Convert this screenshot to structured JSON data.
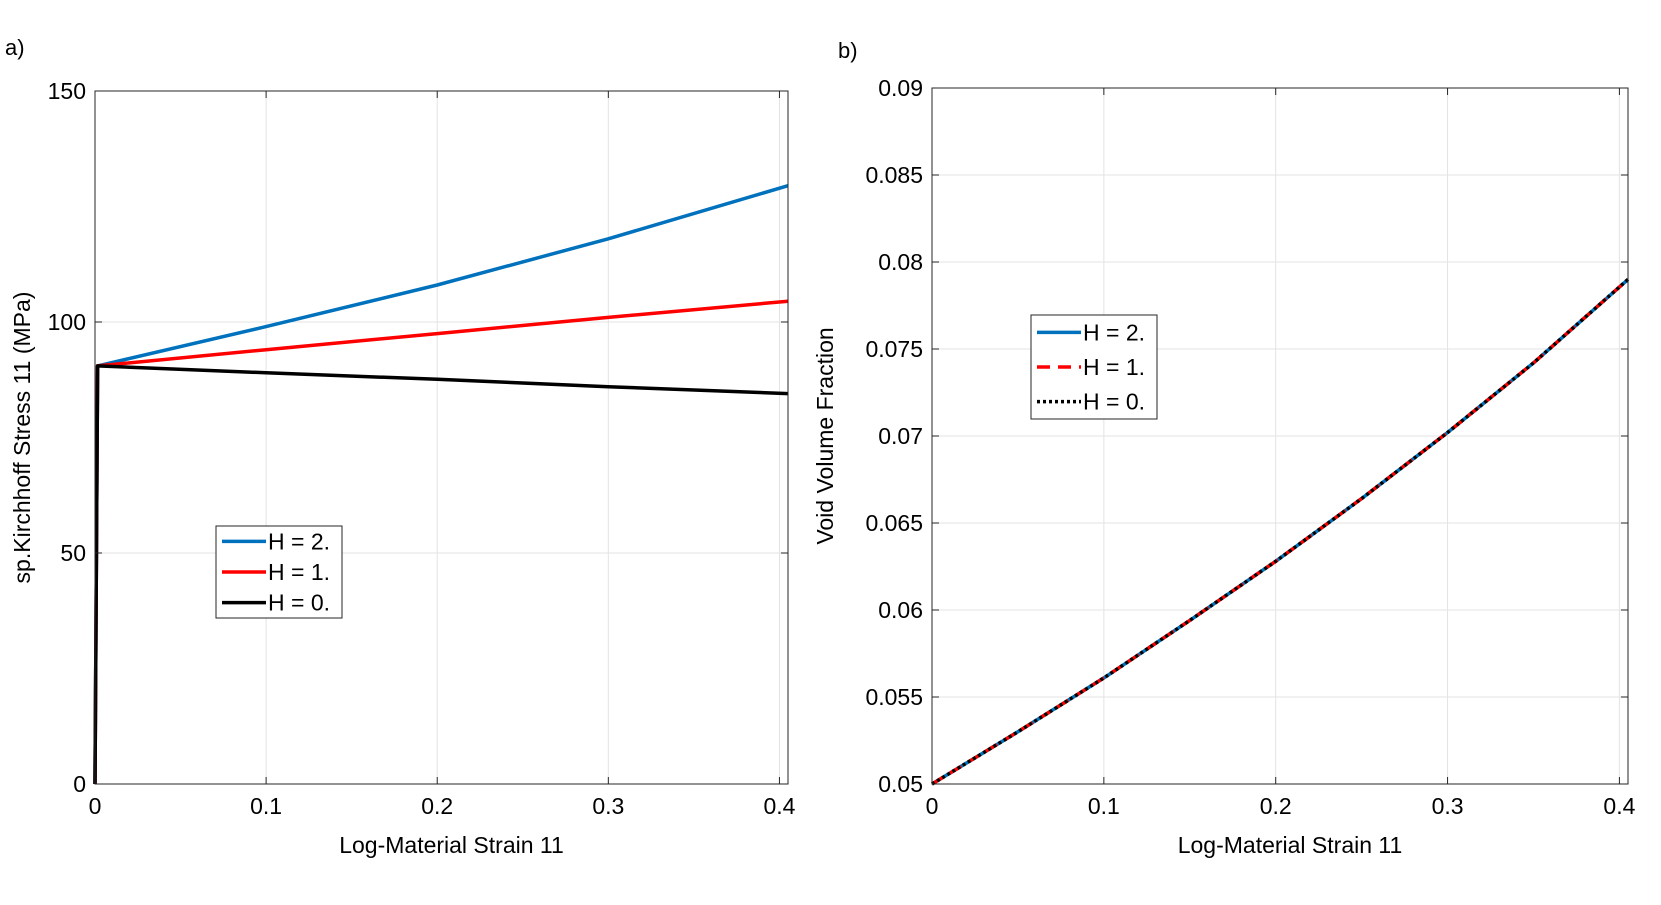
{
  "chart_data": [
    {
      "panel_label": "a)",
      "type": "line",
      "xlabel": "Log-Material        Strain 11",
      "ylabel": "sp.Kirchhoff        Stress 11  (MPa)",
      "xlim": [
        0,
        0.405
      ],
      "ylim": [
        0,
        150
      ],
      "xticks": [
        0,
        0.1,
        0.2,
        0.3,
        0.4
      ],
      "yticks": [
        0,
        50,
        100,
        150
      ],
      "xtick_labels": [
        "0",
        "0.1",
        "0.2",
        "0.3",
        "0.4"
      ],
      "ytick_labels": [
        "0",
        "50",
        "100",
        "150"
      ],
      "grid": true,
      "legend_position": "center-left",
      "series": [
        {
          "name": "H = 2.",
          "color": "#0072bd",
          "dash": "solid",
          "x": [
            0,
            0.0015,
            0.1,
            0.2,
            0.3,
            0.405
          ],
          "y": [
            0,
            90.5,
            99,
            108,
            118,
            129.5
          ]
        },
        {
          "name": "H = 1.",
          "color": "#ff0000",
          "dash": "solid",
          "x": [
            0,
            0.0015,
            0.1,
            0.2,
            0.3,
            0.405
          ],
          "y": [
            0,
            90.5,
            94,
            97.5,
            101,
            104.5
          ]
        },
        {
          "name": "H = 0.",
          "color": "#000000",
          "dash": "solid",
          "x": [
            0,
            0.0015,
            0.1,
            0.2,
            0.3,
            0.405
          ],
          "y": [
            0,
            90.5,
            89,
            87.6,
            86,
            84.5
          ]
        }
      ]
    },
    {
      "panel_label": "b)",
      "type": "line",
      "xlabel": "Log-Material        Strain 11",
      "ylabel": "Void Volume Fraction",
      "xlim": [
        0,
        0.405
      ],
      "ylim": [
        0.05,
        0.09
      ],
      "xticks": [
        0,
        0.1,
        0.2,
        0.3,
        0.4
      ],
      "yticks": [
        0.05,
        0.055,
        0.06,
        0.065,
        0.07,
        0.075,
        0.08,
        0.085,
        0.09
      ],
      "xtick_labels": [
        "0",
        "0.1",
        "0.2",
        "0.3",
        "0.4"
      ],
      "ytick_labels": [
        "0.05",
        "0.055",
        "0.06",
        "0.065",
        "0.07",
        "0.075",
        "0.08",
        "0.085",
        "0.09"
      ],
      "grid": true,
      "legend_position": "upper-left",
      "series": [
        {
          "name": "H = 2.",
          "color": "#0072bd",
          "dash": "solid",
          "x": [
            0,
            0.05,
            0.1,
            0.15,
            0.2,
            0.25,
            0.3,
            0.35,
            0.405
          ],
          "y": [
            0.05,
            0.053,
            0.0561,
            0.0594,
            0.0628,
            0.0664,
            0.0702,
            0.0742,
            0.079
          ]
        },
        {
          "name": "H = 1.",
          "color": "#ff0000",
          "dash": "dashed",
          "x": [
            0,
            0.05,
            0.1,
            0.15,
            0.2,
            0.25,
            0.3,
            0.35,
            0.405
          ],
          "y": [
            0.05,
            0.053,
            0.0561,
            0.0594,
            0.0628,
            0.0664,
            0.0702,
            0.0742,
            0.079
          ]
        },
        {
          "name": "H = 0.",
          "color": "#000000",
          "dash": "dotted",
          "x": [
            0,
            0.05,
            0.1,
            0.15,
            0.2,
            0.25,
            0.3,
            0.35,
            0.405
          ],
          "y": [
            0.05,
            0.053,
            0.0561,
            0.0594,
            0.0628,
            0.0664,
            0.0702,
            0.0742,
            0.079
          ]
        }
      ]
    }
  ]
}
